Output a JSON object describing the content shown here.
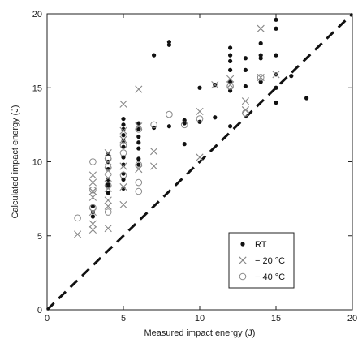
{
  "chart_data": {
    "type": "scatter",
    "xlabel": "Measured impact energy (J)",
    "ylabel": "Calculated impact energy (J)",
    "xlim": [
      0,
      20
    ],
    "ylim": [
      0,
      20
    ],
    "x_ticks": [
      "0",
      "5",
      "10",
      "15",
      "20"
    ],
    "y_ticks": [
      "0",
      "5",
      "10",
      "15",
      "20"
    ],
    "grid": false,
    "legend_position": "bottom-right",
    "reference_line": {
      "style": "dashed",
      "points": [
        [
          0,
          0
        ],
        [
          20,
          20
        ]
      ]
    },
    "series": [
      {
        "name": "RT",
        "marker": "filled-circle",
        "color": "#111111",
        "points": [
          [
            3,
            6.3
          ],
          [
            3,
            6.6
          ],
          [
            3,
            7.0
          ],
          [
            4,
            7.9
          ],
          [
            4,
            8.3
          ],
          [
            4,
            8.5
          ],
          [
            4,
            8.8
          ],
          [
            4,
            9.5
          ],
          [
            4,
            10.0
          ],
          [
            4,
            10.5
          ],
          [
            5,
            8.2
          ],
          [
            5,
            8.8
          ],
          [
            5,
            9.2
          ],
          [
            5,
            9.8
          ],
          [
            5,
            10.3
          ],
          [
            5,
            11.0
          ],
          [
            5,
            11.4
          ],
          [
            5,
            11.8
          ],
          [
            5,
            12.2
          ],
          [
            5,
            12.5
          ],
          [
            5,
            12.9
          ],
          [
            6,
            9.8
          ],
          [
            6,
            10.2
          ],
          [
            6,
            10.9
          ],
          [
            6,
            11.3
          ],
          [
            6,
            11.7
          ],
          [
            6,
            12.2
          ],
          [
            6,
            12.6
          ],
          [
            7,
            12.3
          ],
          [
            7,
            17.2
          ],
          [
            8,
            12.4
          ],
          [
            8,
            17.9
          ],
          [
            8,
            18.1
          ],
          [
            9,
            12.6
          ],
          [
            9,
            12.8
          ],
          [
            9,
            11.2
          ],
          [
            10,
            12.7
          ],
          [
            10,
            15.0
          ],
          [
            11,
            13.0
          ],
          [
            11,
            15.2
          ],
          [
            12,
            12.4
          ],
          [
            12,
            14.8
          ],
          [
            12,
            15.4
          ],
          [
            12,
            16.2
          ],
          [
            12,
            16.8
          ],
          [
            12,
            17.2
          ],
          [
            12,
            17.7
          ],
          [
            13,
            15.1
          ],
          [
            13,
            16.2
          ],
          [
            13,
            17.0
          ],
          [
            14,
            15.4
          ],
          [
            14,
            17.0
          ],
          [
            14,
            17.2
          ],
          [
            14,
            18.0
          ],
          [
            15,
            14.0
          ],
          [
            15,
            15.0
          ],
          [
            15,
            15.9
          ],
          [
            15,
            17.2
          ],
          [
            15,
            19.0
          ],
          [
            15,
            19.6
          ],
          [
            16,
            15.8
          ],
          [
            17,
            14.3
          ]
        ]
      },
      {
        "name": "− 20 °C",
        "marker": "cross",
        "color": "#888888",
        "points": [
          [
            2,
            5.1
          ],
          [
            3,
            5.4
          ],
          [
            3,
            5.8
          ],
          [
            3,
            6.6
          ],
          [
            3,
            7.6
          ],
          [
            3,
            8.0
          ],
          [
            3,
            8.6
          ],
          [
            3,
            9.1
          ],
          [
            4,
            5.5
          ],
          [
            4,
            7.0
          ],
          [
            4,
            7.4
          ],
          [
            4,
            8.2
          ],
          [
            4,
            8.9
          ],
          [
            4,
            9.4
          ],
          [
            4,
            10.0
          ],
          [
            4,
            10.6
          ],
          [
            5,
            7.1
          ],
          [
            5,
            8.3
          ],
          [
            5,
            9.7
          ],
          [
            5,
            11.5
          ],
          [
            5,
            12.1
          ],
          [
            5,
            13.9
          ],
          [
            6,
            9.5
          ],
          [
            6,
            12.4
          ],
          [
            6,
            14.9
          ],
          [
            7,
            10.7
          ],
          [
            7,
            9.7
          ],
          [
            10,
            10.3
          ],
          [
            10,
            13.4
          ],
          [
            11,
            15.2
          ],
          [
            12,
            15.2
          ],
          [
            12,
            15.6
          ],
          [
            13,
            13.5
          ],
          [
            13,
            14.1
          ],
          [
            14,
            15.7
          ],
          [
            14,
            19.0
          ],
          [
            15,
            15.9
          ]
        ]
      },
      {
        "name": "− 40 °C",
        "marker": "open-circle",
        "color": "#888888",
        "points": [
          [
            2,
            6.2
          ],
          [
            3,
            6.9
          ],
          [
            3,
            8.1
          ],
          [
            3,
            10.0
          ],
          [
            4,
            6.6
          ],
          [
            4,
            8.4
          ],
          [
            4,
            9.6
          ],
          [
            4,
            10.2
          ],
          [
            5,
            9.1
          ],
          [
            5,
            10.6
          ],
          [
            5,
            11.1
          ],
          [
            6,
            8.0
          ],
          [
            6,
            8.6
          ],
          [
            6,
            9.8
          ],
          [
            6,
            12.2
          ],
          [
            7,
            12.5
          ],
          [
            8,
            13.2
          ],
          [
            9,
            12.5
          ],
          [
            10,
            12.9
          ],
          [
            12,
            15.1
          ],
          [
            13,
            13.3
          ],
          [
            14,
            15.7
          ]
        ]
      }
    ]
  }
}
